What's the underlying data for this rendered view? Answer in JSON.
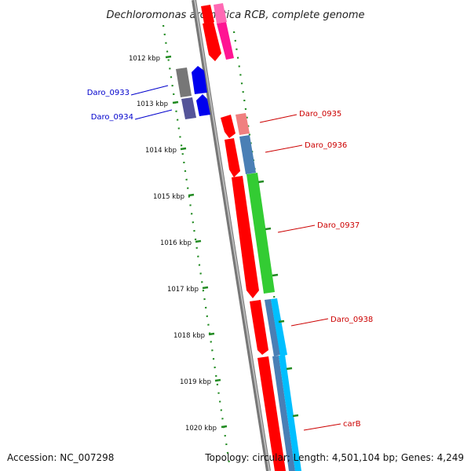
{
  "title": "Dechloromonas aromatica RCB, complete genome",
  "footer": {
    "accession": "Accession: NC_007298",
    "summary": "Topology: circular; Length: 4,501,104 bp; Genes: 4,249"
  },
  "scale_ticks": [
    "1012 kbp",
    "1013 kbp",
    "1014 kbp",
    "1015 kbp",
    "1016 kbp",
    "1017 kbp",
    "1018 kbp",
    "1019 kbp",
    "1020 kbp"
  ],
  "gene_labels": [
    {
      "text": "Daro_0933",
      "color": "#0000cc"
    },
    {
      "text": "Daro_0934",
      "color": "#0000cc"
    },
    {
      "text": "Daro_0935",
      "color": "#cc0000"
    },
    {
      "text": "Daro_0936",
      "color": "#cc0000"
    },
    {
      "text": "Daro_0937",
      "color": "#cc0000"
    },
    {
      "text": "Daro_0938",
      "color": "#cc0000"
    },
    {
      "text": "carB",
      "color": "#cc0000"
    }
  ],
  "colors": {
    "forward_cds": "#ff0000",
    "reverse_cds": "#0000ee",
    "backbone": "#888888",
    "gc_skew": "#228b22",
    "feature_pink": "#ff1493",
    "feature_green": "#33cc33",
    "feature_steelblue": "#4a7fb5",
    "feature_cyan": "#00bfff",
    "feature_slate": "#555577",
    "feature_salmon": "#f08080"
  }
}
